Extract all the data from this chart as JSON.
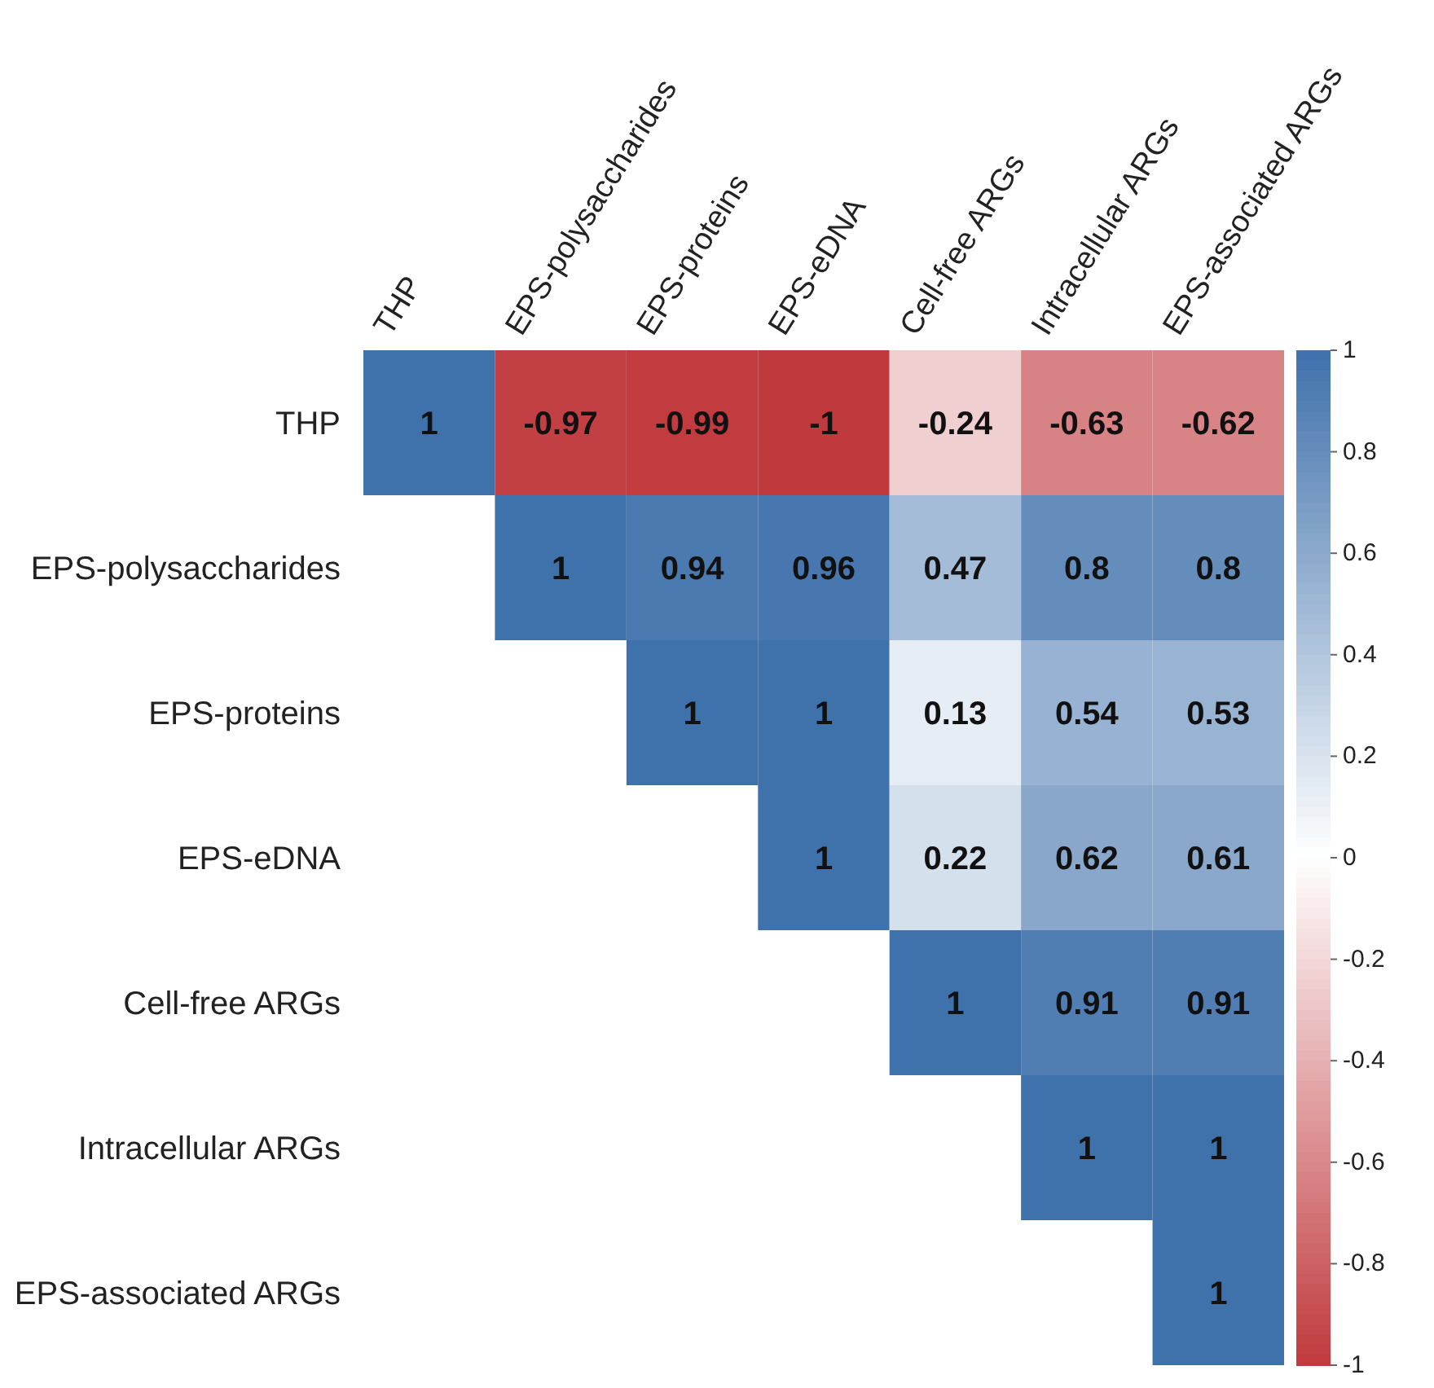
{
  "chart_data": {
    "type": "heatmap",
    "categories": [
      "THP",
      "EPS-polysaccharides",
      "EPS-proteins",
      "EPS-eDNA",
      "Cell-free ARGs",
      "Intracellular ARGs",
      "EPS-associated ARGs"
    ],
    "y_categories": [
      "THP",
      "EPS-polysaccharides",
      "EPS-proteins",
      "EPS-eDNA",
      "Cell-free ARGs",
      "Intracellular ARGs",
      "EPS-associated ARGs"
    ],
    "cells": [
      [
        1,
        -0.97,
        -0.99,
        -1,
        -0.24,
        -0.63,
        -0.62
      ],
      [
        null,
        1,
        0.94,
        0.96,
        0.47,
        0.8,
        0.8
      ],
      [
        null,
        null,
        1,
        1,
        0.13,
        0.54,
        0.53
      ],
      [
        null,
        null,
        null,
        1,
        0.22,
        0.62,
        0.61
      ],
      [
        null,
        null,
        null,
        null,
        1,
        0.91,
        0.91
      ],
      [
        null,
        null,
        null,
        null,
        null,
        1,
        1
      ],
      [
        null,
        null,
        null,
        null,
        null,
        null,
        1
      ]
    ],
    "data_labels": true,
    "colors": [
      "#c0393d",
      "#ffffff",
      "#3f71ab"
    ],
    "clim": [
      -1,
      1
    ],
    "cticks": [
      -1,
      -0.8,
      -0.6,
      -0.4,
      -0.2,
      0,
      0.2,
      0.4,
      0.6,
      0.8,
      1
    ]
  }
}
